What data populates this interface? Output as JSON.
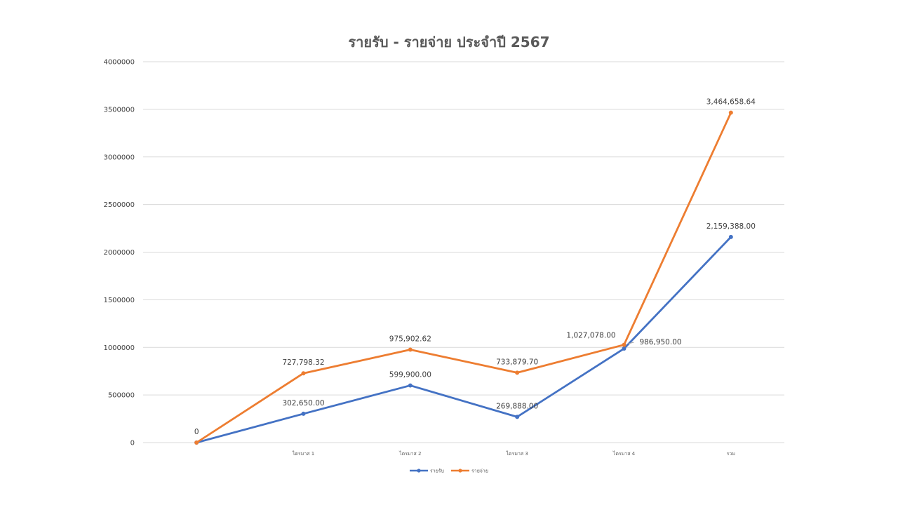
{
  "chart_data": {
    "type": "line",
    "title": "รายรับ - รายจ่าย ประจำปี 2567",
    "xlabel": "",
    "ylabel": "",
    "categories": [
      "",
      "ไตรมาส 1",
      "ไตรมาส 2",
      "ไตรมาส 3",
      "ไตรมาส 4",
      "รวม"
    ],
    "ylim": [
      0,
      4000000
    ],
    "yticks": [
      0,
      500000,
      1000000,
      1500000,
      2000000,
      2500000,
      3000000,
      3500000,
      4000000
    ],
    "ytick_labels": [
      "0",
      "500000",
      "1000000",
      "1500000",
      "2000000",
      "2500000",
      "3000000",
      "3500000",
      "4000000"
    ],
    "grid": true,
    "legend_position": "bottom",
    "series": [
      {
        "name": "รายรับ",
        "color": "#4472C4",
        "values": [
          0,
          302650,
          599900,
          269888,
          986950,
          2159388
        ],
        "labels": [
          "0",
          "302,650.00",
          "599,900.00",
          "269,888.00",
          "986,950.00",
          "2,159,388.00"
        ]
      },
      {
        "name": "รายจ่าย",
        "color": "#ED7D31",
        "values": [
          0,
          727798.32,
          975902.62,
          733879.7,
          1027078.0,
          3464658.64
        ],
        "labels": [
          "",
          "727,798.32",
          "975,902.62",
          "733,879.70",
          "1,027,078.00",
          "3,464,658.64"
        ]
      }
    ]
  }
}
